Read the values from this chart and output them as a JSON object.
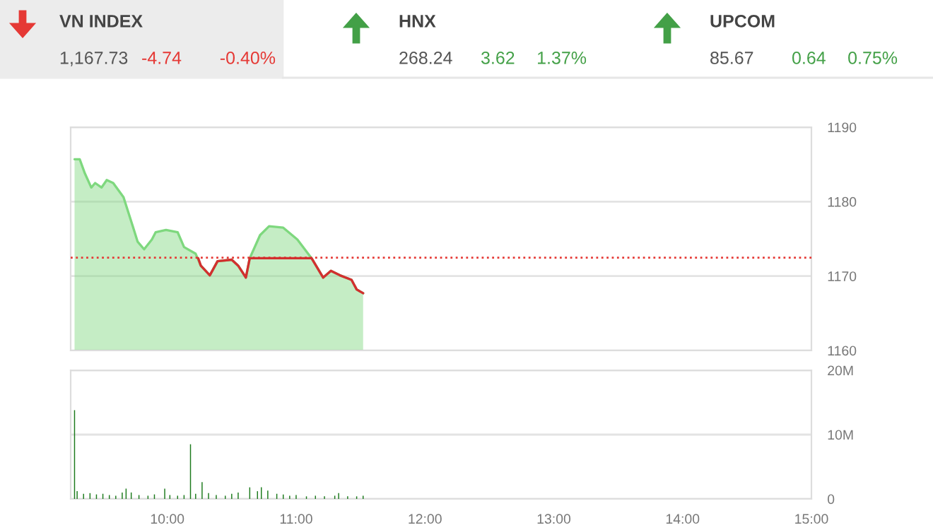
{
  "chart_data": [
    {
      "type": "other",
      "annotations": [
        "VN INDEX",
        "1,167.73",
        "-4.74",
        "-0.40%",
        "HNX",
        "268.24",
        "3.62",
        "1.37%",
        "UPCOM",
        "85.67",
        "0.64",
        "0.75%"
      ],
      "colors": [
        "#444444",
        "#555555",
        "#e53935",
        "#e53935",
        "#444444",
        "#555555",
        "#43a047",
        "#43a047",
        "#444444",
        "#555555",
        "#43a047",
        "#43a047"
      ]
    },
    {
      "type": "area",
      "xlim": [
        9.25,
        15
      ],
      "ylim": [
        1160,
        1190
      ],
      "yticks": [
        1160,
        1170,
        1180,
        1190
      ],
      "grid": "y",
      "tick_labels": "y",
      "ref_lines": [
        {
          "axis": "y",
          "value": 1172.47,
          "color": "#e53935",
          "line_style": "dotted"
        }
      ],
      "series": [
        {
          "color": "#7ed87e",
          "x": [
            9.28,
            9.32,
            9.36,
            9.41,
            9.44,
            9.49,
            9.53,
            9.58,
            9.66,
            9.73,
            9.77,
            9.82,
            9.88,
            9.91,
            9.99,
            10.08,
            10.13,
            10.22,
            10.26,
            10.33,
            10.39,
            10.5,
            10.55,
            10.61,
            10.64,
            10.72,
            10.79,
            10.9,
            11.01,
            11.12,
            11.21,
            11.27,
            11.34,
            11.43,
            11.47,
            11.52
          ],
          "values": [
            1185.7,
            1185.7,
            1183.8,
            1181.9,
            1182.5,
            1181.9,
            1182.9,
            1182.5,
            1180.6,
            1176.8,
            1174.6,
            1173.6,
            1174.9,
            1175.9,
            1176.2,
            1175.9,
            1173.9,
            1173.0,
            1171.4,
            1170.1,
            1172.0,
            1172.2,
            1171.4,
            1169.8,
            1172.4,
            1175.5,
            1176.7,
            1176.5,
            1174.9,
            1172.4,
            1169.8,
            1170.7,
            1170.1,
            1169.5,
            1168.2,
            1167.7
          ]
        },
        {
          "type": "line",
          "color": "#d32f2f",
          "x": [
            10.24,
            10.26,
            10.33,
            10.39,
            10.5,
            10.55,
            10.61,
            10.64,
            11.12,
            11.21,
            11.27,
            11.34,
            11.43,
            11.47,
            11.52
          ],
          "values": [
            1172.4,
            1171.4,
            1170.1,
            1172.0,
            1172.2,
            1171.4,
            1169.8,
            1172.4,
            1172.4,
            1169.8,
            1170.7,
            1170.1,
            1169.5,
            1168.2,
            1167.7
          ]
        }
      ]
    },
    {
      "type": "bar",
      "xlim": [
        9.25,
        15
      ],
      "ylim": [
        0,
        20000000
      ],
      "yticks": [
        0,
        {
          "value": 10000000,
          "label": "10M"
        },
        {
          "value": 20000000,
          "label": "20M"
        }
      ],
      "xticks": [
        {
          "value": 10,
          "label": "10:00"
        },
        {
          "value": 11,
          "label": "11:00"
        },
        {
          "value": 12,
          "label": "12:00"
        },
        {
          "value": 13,
          "label": "13:00"
        },
        {
          "value": 14,
          "label": "14:00"
        },
        {
          "value": 15,
          "label": "15:00"
        }
      ],
      "grid": "y",
      "series": [
        {
          "color": "#1b7a1b",
          "x": [
            9.28,
            9.3,
            9.35,
            9.4,
            9.45,
            9.5,
            9.55,
            9.6,
            9.65,
            9.68,
            9.72,
            9.78,
            9.85,
            9.9,
            9.98,
            10.02,
            10.08,
            10.13,
            10.18,
            10.22,
            10.27,
            10.32,
            10.38,
            10.45,
            10.5,
            10.55,
            10.64,
            10.7,
            10.73,
            10.78,
            10.85,
            10.9,
            10.95,
            11.0,
            11.08,
            11.15,
            11.22,
            11.3,
            11.33,
            11.4,
            11.47,
            11.52
          ],
          "values": [
            13800000,
            1200000,
            800000,
            900000,
            700000,
            800000,
            600000,
            500000,
            1000000,
            1600000,
            1000000,
            600000,
            500000,
            700000,
            1600000,
            600000,
            500000,
            600000,
            8500000,
            800000,
            2600000,
            900000,
            600000,
            500000,
            800000,
            1000000,
            1800000,
            1200000,
            1800000,
            1300000,
            800000,
            700000,
            500000,
            600000,
            400000,
            500000,
            400000,
            500000,
            900000,
            400000,
            400000,
            500000
          ]
        }
      ]
    }
  ]
}
